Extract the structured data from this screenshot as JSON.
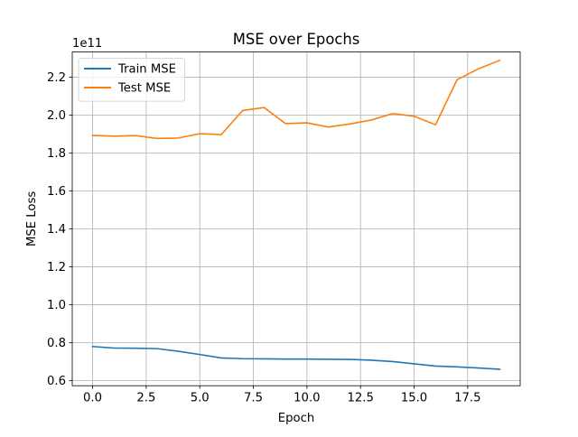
{
  "chart_data": {
    "type": "line",
    "title": "MSE over Epochs",
    "xlabel": "Epoch",
    "ylabel": "MSE Loss",
    "y_offset_label": "1e11",
    "y_scale": 100000000000.0,
    "xlim": [
      -0.95,
      19.95
    ],
    "ylim": [
      0.5735,
      2.3325
    ],
    "x_ticks": [
      0.0,
      2.5,
      5.0,
      7.5,
      10.0,
      12.5,
      15.0,
      17.5
    ],
    "x_tick_labels": [
      "0.0",
      "2.5",
      "5.0",
      "7.5",
      "10.0",
      "12.5",
      "15.0",
      "17.5"
    ],
    "y_ticks": [
      0.6,
      0.8,
      1.0,
      1.2,
      1.4,
      1.6,
      1.8,
      2.0,
      2.2
    ],
    "y_tick_labels": [
      "0.6",
      "0.8",
      "1.0",
      "1.2",
      "1.4",
      "1.6",
      "1.8",
      "2.0",
      "2.2"
    ],
    "grid": true,
    "legend_position": "top-left",
    "x": [
      0,
      1,
      2,
      3,
      4,
      5,
      6,
      7,
      8,
      9,
      10,
      11,
      12,
      13,
      14,
      15,
      16,
      17,
      18,
      19
    ],
    "series": [
      {
        "name": "Train MSE",
        "color": "#1f77b4",
        "values": [
          0.78,
          0.772,
          0.771,
          0.769,
          0.755,
          0.738,
          0.72,
          0.716,
          0.715,
          0.714,
          0.714,
          0.713,
          0.712,
          0.708,
          0.701,
          0.689,
          0.677,
          0.673,
          0.667,
          0.66
        ]
      },
      {
        "name": "Test MSE",
        "color": "#ff7f0e",
        "values": [
          1.893,
          1.889,
          1.892,
          1.877,
          1.879,
          1.902,
          1.897,
          2.024,
          2.04,
          1.955,
          1.959,
          1.937,
          1.953,
          1.974,
          2.008,
          1.994,
          1.949,
          2.186,
          2.244,
          2.289
        ]
      }
    ]
  }
}
